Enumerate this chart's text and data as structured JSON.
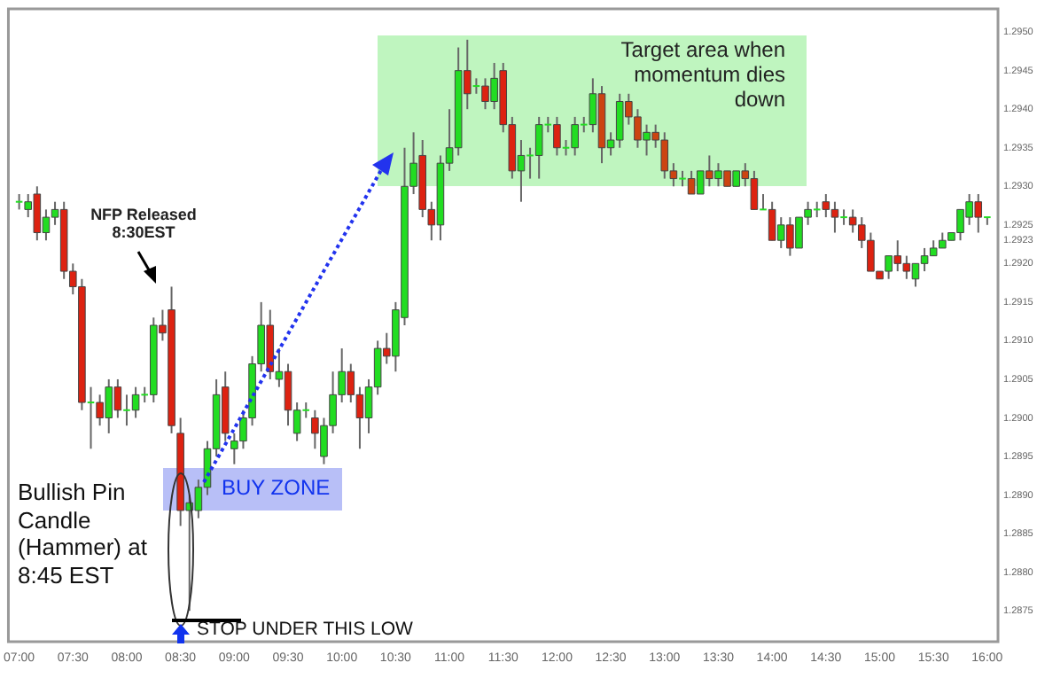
{
  "chart_data": {
    "type": "candlestick",
    "x": [
      7,
      7.0833,
      7.1667,
      7.25,
      7.3333,
      7.4167,
      7.5,
      7.5833,
      7.6667,
      7.75,
      7.8333,
      7.9167,
      8,
      8.0833,
      8.1667,
      8.25,
      8.3333,
      8.4167,
      8.5,
      8.5833,
      8.6667,
      8.75,
      8.8333,
      8.9167,
      9,
      9.0833,
      9.1667,
      9.25,
      9.3333,
      9.4167,
      9.5,
      9.5833,
      9.6667,
      9.75,
      9.8333,
      9.9167,
      10,
      10.0833,
      10.1667,
      10.25,
      10.3333,
      10.4167,
      10.5,
      10.5833,
      10.6667,
      10.75,
      10.8333,
      10.9167,
      11,
      11.0833,
      11.1667,
      11.25,
      11.3333,
      11.4167,
      11.5,
      11.5833,
      11.6667,
      11.75,
      11.8333,
      11.9167,
      12,
      12.0833,
      12.1667,
      12.25,
      12.3333,
      12.4167,
      12.5,
      12.5833,
      12.6667,
      12.75,
      12.8333,
      12.9167,
      13,
      13.0833,
      13.1667,
      13.25,
      13.3333,
      13.4167,
      13.5,
      13.5833,
      13.6667,
      13.75,
      13.8333,
      13.9167,
      14,
      14.0833,
      14.1667,
      14.25,
      14.3333,
      14.4167,
      14.5,
      14.5833,
      14.6667,
      14.75,
      14.8333,
      14.9167,
      15,
      15.0833,
      15.1667,
      15.25,
      15.3333,
      15.4167,
      15.5,
      15.5833,
      15.6667,
      15.75,
      15.8333,
      15.9167,
      16
    ],
    "ohlc": [
      [
        1.2928,
        1.2929,
        1.2927,
        1.2928
      ],
      [
        1.2927,
        1.2929,
        1.2926,
        1.2928
      ],
      [
        1.2929,
        1.293,
        1.2923,
        1.2924
      ],
      [
        1.2924,
        1.2927,
        1.2923,
        1.2926
      ],
      [
        1.2926,
        1.2928,
        1.2925,
        1.2927
      ],
      [
        1.2927,
        1.2928,
        1.2918,
        1.2919
      ],
      [
        1.2919,
        1.292,
        1.2916,
        1.2917
      ],
      [
        1.2917,
        1.2918,
        1.2901,
        1.2902
      ],
      [
        1.2902,
        1.2904,
        1.2896,
        1.2902
      ],
      [
        1.2902,
        1.2903,
        1.2899,
        1.29
      ],
      [
        1.29,
        1.2905,
        1.2898,
        1.2904
      ],
      [
        1.2904,
        1.2905,
        1.29,
        1.2901
      ],
      [
        1.2901,
        1.2903,
        1.2899,
        1.2901
      ],
      [
        1.2901,
        1.2904,
        1.29,
        1.2903
      ],
      [
        1.2903,
        1.2904,
        1.2902,
        1.2903
      ],
      [
        1.2903,
        1.2913,
        1.2902,
        1.2912
      ],
      [
        1.2912,
        1.2914,
        1.291,
        1.2911
      ],
      [
        1.2914,
        1.2917,
        1.2898,
        1.2899
      ],
      [
        1.2898,
        1.29,
        1.2886,
        1.2888
      ],
      [
        1.2888,
        1.289,
        1.2875,
        1.2889
      ],
      [
        1.2888,
        1.2892,
        1.2887,
        1.2891
      ],
      [
        1.2891,
        1.2897,
        1.289,
        1.2896
      ],
      [
        1.2896,
        1.2905,
        1.2895,
        1.2903
      ],
      [
        1.2904,
        1.2906,
        1.2897,
        1.2898
      ],
      [
        1.2896,
        1.2898,
        1.2894,
        1.2897
      ],
      [
        1.2897,
        1.2901,
        1.2896,
        1.29
      ],
      [
        1.29,
        1.2908,
        1.2899,
        1.2907
      ],
      [
        1.2907,
        1.2915,
        1.2906,
        1.2912
      ],
      [
        1.2912,
        1.2914,
        1.2905,
        1.2906
      ],
      [
        1.2905,
        1.2909,
        1.2904,
        1.2906
      ],
      [
        1.2906,
        1.2907,
        1.2899,
        1.2901
      ],
      [
        1.2898,
        1.2902,
        1.2897,
        1.2901
      ],
      [
        1.2901,
        1.2902,
        1.29,
        1.2901
      ],
      [
        1.29,
        1.2901,
        1.2896,
        1.2898
      ],
      [
        1.2895,
        1.29,
        1.2894,
        1.2899
      ],
      [
        1.2899,
        1.2906,
        1.2898,
        1.2903
      ],
      [
        1.2903,
        1.2909,
        1.2902,
        1.2906
      ],
      [
        1.2906,
        1.2907,
        1.2902,
        1.2903
      ],
      [
        1.2903,
        1.2904,
        1.2896,
        1.29
      ],
      [
        1.29,
        1.2905,
        1.2898,
        1.2904
      ],
      [
        1.2904,
        1.291,
        1.2903,
        1.2909
      ],
      [
        1.2909,
        1.2911,
        1.2907,
        1.2908
      ],
      [
        1.2908,
        1.2915,
        1.2906,
        1.2914
      ],
      [
        1.2913,
        1.2935,
        1.2912,
        1.293
      ],
      [
        1.293,
        1.2937,
        1.2929,
        1.2933
      ],
      [
        1.2934,
        1.2936,
        1.2926,
        1.2927
      ],
      [
        1.2927,
        1.2928,
        1.2923,
        1.2925
      ],
      [
        1.2925,
        1.2934,
        1.2923,
        1.2933
      ],
      [
        1.2933,
        1.294,
        1.2932,
        1.2935
      ],
      [
        1.2935,
        1.2948,
        1.2934,
        1.2945
      ],
      [
        1.2945,
        1.2949,
        1.294,
        1.2942
      ],
      [
        1.2943,
        1.2944,
        1.2942,
        1.2943
      ],
      [
        1.2943,
        1.2944,
        1.294,
        1.2941
      ],
      [
        1.2941,
        1.2946,
        1.294,
        1.2944
      ],
      [
        1.2945,
        1.2946,
        1.2937,
        1.2938
      ],
      [
        1.2938,
        1.2939,
        1.2931,
        1.2932
      ],
      [
        1.2932,
        1.2936,
        1.2928,
        1.2934
      ],
      [
        1.2934,
        1.2935,
        1.2931,
        1.2934
      ],
      [
        1.2934,
        1.2939,
        1.2931,
        1.2938
      ],
      [
        1.2938,
        1.2939,
        1.2937,
        1.2938
      ],
      [
        1.2938,
        1.2939,
        1.2934,
        1.2935
      ],
      [
        1.2935,
        1.2936,
        1.2934,
        1.2935
      ],
      [
        1.2935,
        1.2939,
        1.2934,
        1.2938
      ],
      [
        1.2938,
        1.2939,
        1.2937,
        1.2938
      ],
      [
        1.2938,
        1.2944,
        1.2937,
        1.2942
      ],
      [
        1.2942,
        1.2943,
        1.2933,
        1.2935
      ],
      [
        1.2935,
        1.2937,
        1.2934,
        1.2936
      ],
      [
        1.2936,
        1.2942,
        1.2935,
        1.2941
      ],
      [
        1.2941,
        1.2942,
        1.2938,
        1.2939
      ],
      [
        1.2939,
        1.294,
        1.2935,
        1.2936
      ],
      [
        1.2936,
        1.2938,
        1.2934,
        1.2937
      ],
      [
        1.2937,
        1.2938,
        1.2935,
        1.2936
      ],
      [
        1.2936,
        1.2937,
        1.2931,
        1.2932
      ],
      [
        1.2932,
        1.2933,
        1.293,
        1.2931
      ],
      [
        1.2931,
        1.2932,
        1.293,
        1.2931
      ],
      [
        1.2931,
        1.2932,
        1.2929,
        1.2929
      ],
      [
        1.2929,
        1.2932,
        1.2929,
        1.2932
      ],
      [
        1.2932,
        1.2934,
        1.293,
        1.2931
      ],
      [
        1.2931,
        1.2933,
        1.293,
        1.2932
      ],
      [
        1.2932,
        1.2932,
        1.293,
        1.293
      ],
      [
        1.293,
        1.2932,
        1.293,
        1.2932
      ],
      [
        1.2932,
        1.2933,
        1.293,
        1.2931
      ],
      [
        1.2931,
        1.2932,
        1.2927,
        1.2927
      ],
      [
        1.2927,
        1.2929,
        1.2927,
        1.2927
      ],
      [
        1.2927,
        1.2928,
        1.2923,
        1.2923
      ],
      [
        1.2923,
        1.2926,
        1.2922,
        1.2925
      ],
      [
        1.2925,
        1.2926,
        1.2921,
        1.2922
      ],
      [
        1.2922,
        1.2926,
        1.2922,
        1.2926
      ],
      [
        1.2926,
        1.2928,
        1.2925,
        1.2927
      ],
      [
        1.2927,
        1.2928,
        1.2926,
        1.2927
      ],
      [
        1.2928,
        1.2929,
        1.2926,
        1.2927
      ],
      [
        1.2927,
        1.2928,
        1.2924,
        1.2926
      ],
      [
        1.2926,
        1.2927,
        1.2925,
        1.2926
      ],
      [
        1.2926,
        1.2927,
        1.2924,
        1.2925
      ],
      [
        1.2925,
        1.2926,
        1.2922,
        1.2923
      ],
      [
        1.2923,
        1.2924,
        1.2919,
        1.2919
      ],
      [
        1.2919,
        1.2919,
        1.2918,
        1.2918
      ],
      [
        1.2919,
        1.2921,
        1.2918,
        1.2921
      ],
      [
        1.2921,
        1.2923,
        1.2919,
        1.292
      ],
      [
        1.292,
        1.2921,
        1.2918,
        1.2919
      ],
      [
        1.2918,
        1.292,
        1.2917,
        1.292
      ],
      [
        1.292,
        1.2922,
        1.2919,
        1.2921
      ],
      [
        1.2921,
        1.2923,
        1.2921,
        1.2922
      ],
      [
        1.2922,
        1.2924,
        1.2922,
        1.2923
      ],
      [
        1.2923,
        1.2924,
        1.2923,
        1.2924
      ],
      [
        1.2924,
        1.2927,
        1.2923,
        1.2927
      ],
      [
        1.2926,
        1.2929,
        1.2925,
        1.2928
      ],
      [
        1.2928,
        1.2929,
        1.2924,
        1.2926
      ],
      [
        1.2926,
        1.2926,
        1.2925,
        1.2926
      ]
    ],
    "colors": [
      "#22dd22",
      "#22dd22",
      "#dd2211",
      "#22dd22",
      "#22dd22",
      "#dd2211",
      "#dd2211",
      "#dd2211",
      "#22dd22",
      "#dd2211",
      "#22dd22",
      "#dd2211",
      "#22dd22",
      "#22dd22",
      "#22dd22",
      "#22dd22",
      "#dd2211",
      "#dd2211",
      "#dd2211",
      "#22dd22",
      "#22dd22",
      "#22dd22",
      "#22dd22",
      "#dd2211",
      "#22dd22",
      "#22dd22",
      "#22dd22",
      "#22dd22",
      "#dd2211",
      "#22dd22",
      "#dd2211",
      "#22dd22",
      "#22dd22",
      "#dd2211",
      "#22dd22",
      "#22dd22",
      "#22dd22",
      "#dd2211",
      "#dd2211",
      "#22dd22",
      "#22dd22",
      "#dd2211",
      "#22dd22",
      "#22dd22",
      "#22dd22",
      "#dd2211",
      "#dd2211",
      "#22dd22",
      "#22dd22",
      "#22dd22",
      "#dd2211",
      "#22dd22",
      "#dd2211",
      "#22dd22",
      "#dd2211",
      "#dd2211",
      "#22dd22",
      "#22dd22",
      "#22dd22",
      "#22dd22",
      "#dd2211",
      "#22dd22",
      "#22dd22",
      "#22dd22",
      "#22dd22",
      "#cc4411",
      "#22dd22",
      "#22dd22",
      "#cc4411",
      "#cc4411",
      "#22dd22",
      "#cc4411",
      "#cc4411",
      "#cc4411",
      "#22dd22",
      "#cc4411",
      "#22dd22",
      "#cc4411",
      "#22dd22",
      "#cc4411",
      "#22dd22",
      "#cc4411",
      "#dd2211",
      "#22dd22",
      "#dd2211",
      "#22dd22",
      "#dd2211",
      "#22dd22",
      "#22dd22",
      "#22dd22",
      "#dd2211",
      "#dd2211",
      "#22dd22",
      "#dd2211",
      "#dd2211",
      "#dd2211",
      "#dd2211",
      "#22dd22",
      "#dd2211",
      "#dd2211",
      "#22dd22",
      "#22dd22",
      "#22dd22",
      "#22dd22",
      "#22dd22",
      "#22dd22",
      "#22dd22",
      "#dd2211",
      "#22dd22"
    ],
    "xlim": [
      6.9,
      16.1
    ],
    "xticks": [
      {
        "value": 7,
        "label": "07:00"
      },
      {
        "value": 7.5,
        "label": "07:30"
      },
      {
        "value": 8,
        "label": "08:00"
      },
      {
        "value": 8.5,
        "label": "08:30"
      },
      {
        "value": 9,
        "label": "09:00"
      },
      {
        "value": 9.5,
        "label": "09:30"
      },
      {
        "value": 10,
        "label": "10:00"
      },
      {
        "value": 10.5,
        "label": "10:30"
      },
      {
        "value": 11,
        "label": "11:00"
      },
      {
        "value": 11.5,
        "label": "11:30"
      },
      {
        "value": 12,
        "label": "12:00"
      },
      {
        "value": 12.5,
        "label": "12:30"
      },
      {
        "value": 13,
        "label": "13:00"
      },
      {
        "value": 13.5,
        "label": "13:30"
      },
      {
        "value": 14,
        "label": "14:00"
      },
      {
        "value": 14.5,
        "label": "14:30"
      },
      {
        "value": 15,
        "label": "15:00"
      },
      {
        "value": 15.5,
        "label": "15:30"
      },
      {
        "value": 16,
        "label": "16:00"
      }
    ],
    "ylim": [
      1.2871,
      1.2953
    ],
    "yticks": [
      {
        "value": 1.2875,
        "label": "1.2875"
      },
      {
        "value": 1.288,
        "label": "1.2880"
      },
      {
        "value": 1.2885,
        "label": "1.2885"
      },
      {
        "value": 1.289,
        "label": "1.2890"
      },
      {
        "value": 1.2895,
        "label": "1.2895"
      },
      {
        "value": 1.29,
        "label": "1.2900"
      },
      {
        "value": 1.2905,
        "label": "1.2905"
      },
      {
        "value": 1.291,
        "label": "1.2910"
      },
      {
        "value": 1.2915,
        "label": "1.2915"
      },
      {
        "value": 1.292,
        "label": "1.2920"
      },
      {
        "value": 1.2923,
        "label": "1.2923"
      },
      {
        "value": 1.2925,
        "label": "1.2925"
      },
      {
        "value": 1.293,
        "label": "1.2930"
      },
      {
        "value": 1.2935,
        "label": "1.2935"
      },
      {
        "value": 1.294,
        "label": "1.2940"
      },
      {
        "value": 1.2945,
        "label": "1.2945"
      },
      {
        "value": 1.295,
        "label": "1.2950"
      }
    ],
    "annotations": [
      "Target  area when momentum dies down",
      "NFP Released 8:30EST",
      "Bullish Pin Candle (Hammer) at 8:45 EST",
      "BUY ZONE",
      "STOP UNDER THIS LOW"
    ]
  }
}
